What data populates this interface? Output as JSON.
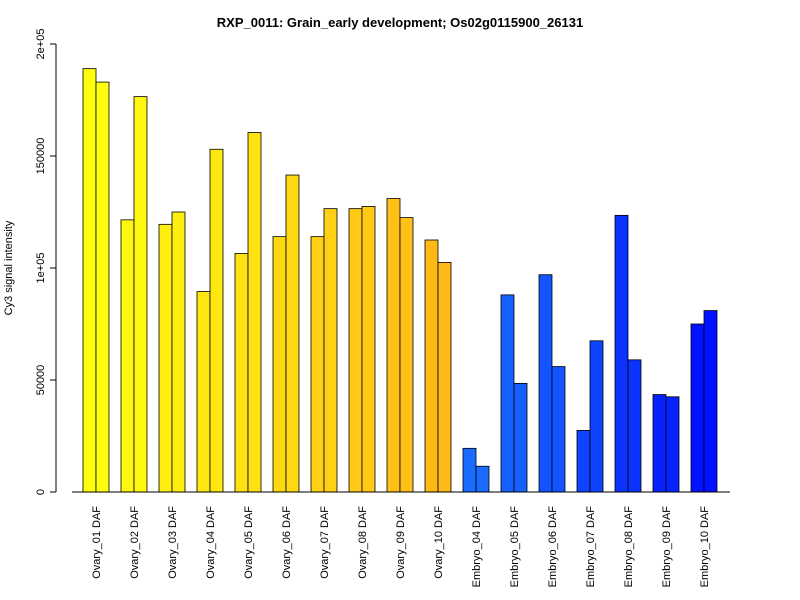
{
  "chart_data": {
    "type": "bar",
    "title": "RXP_0011: Grain_early development; Os02g0115900_26131",
    "xlabel": "",
    "ylabel": "Cy3 signal intensity",
    "ylim": [
      0,
      200000
    ],
    "y_ticks": [
      0,
      50000,
      100000,
      150000,
      200000
    ],
    "y_tick_labels": [
      "0",
      "50000",
      "1e+05",
      "150000",
      "2e+05"
    ],
    "grid": false,
    "legend": "none",
    "categories": [
      "Ovary_01 DAF",
      "Ovary_02 DAF",
      "Ovary_03 DAF",
      "Ovary_04 DAF",
      "Ovary_05 DAF",
      "Ovary_06 DAF",
      "Ovary_07 DAF",
      "Ovary_08 DAF",
      "Ovary_09 DAF",
      "Ovary_10 DAF",
      "Embryo_04 DAF",
      "Embryo_05 DAF",
      "Embryo_06 DAF",
      "Embryo_07 DAF",
      "Embryo_08 DAF",
      "Embryo_09 DAF",
      "Embryo_10 DAF"
    ],
    "series": [
      {
        "values": [
          189000,
          121500,
          119500,
          89500,
          106500,
          114000,
          114000,
          126500,
          131000,
          112500,
          19500,
          88000,
          97000,
          27500,
          123500,
          43500,
          75000
        ]
      },
      {
        "values": [
          183000,
          176500,
          125000,
          153000,
          160500,
          141500,
          126500,
          127500,
          122500,
          102500,
          11500,
          48500,
          56000,
          67500,
          59000,
          42500,
          81000
        ]
      }
    ],
    "colors": [
      "#FFFF0D",
      "#FFF70E",
      "#FFEF0F",
      "#FFE810",
      "#FFE011",
      "#FFD812",
      "#FFD013",
      "#FFC914",
      "#FFC115",
      "#FFB916",
      "#1A6BFF",
      "#1660FF",
      "#1255FF",
      "#0E44FF",
      "#0A33FF",
      "#0622FF",
      "#0211FF"
    ]
  }
}
